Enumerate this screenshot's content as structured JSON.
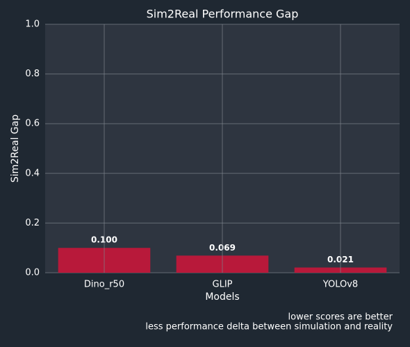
{
  "chart_data": {
    "type": "bar",
    "title": "Sim2Real Performance Gap",
    "x_label": "Models",
    "y_label": "Sim2Real Gap",
    "categories": [
      "Dino_r50",
      "GLIP",
      "YOLOv8"
    ],
    "values": [
      0.1,
      0.069,
      0.021
    ],
    "value_labels": [
      "0.100",
      "0.069",
      "0.021"
    ],
    "color": "#b8193a",
    "ylim": [
      0,
      1
    ],
    "yticks": [
      {
        "value": 0,
        "label": "0.0"
      },
      0.2,
      0.4,
      0.6,
      0.8,
      {
        "value": 1,
        "label": "1.0"
      }
    ],
    "grid": true,
    "annotations": [
      "lower scores are better",
      "less performance delta between simulation and reality"
    ]
  }
}
